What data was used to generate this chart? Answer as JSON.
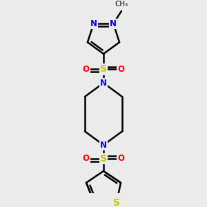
{
  "bg_color": "#ebebeb",
  "bond_color": "#000000",
  "N_color": "#0000ff",
  "S_color": "#c8c800",
  "O_color": "#ff0000",
  "line_width": 1.8,
  "font_size": 8.5,
  "figsize": [
    3.0,
    3.0
  ],
  "dpi": 100,
  "xlim": [
    0.6,
    2.4
  ],
  "ylim": [
    0.1,
    3.1
  ]
}
